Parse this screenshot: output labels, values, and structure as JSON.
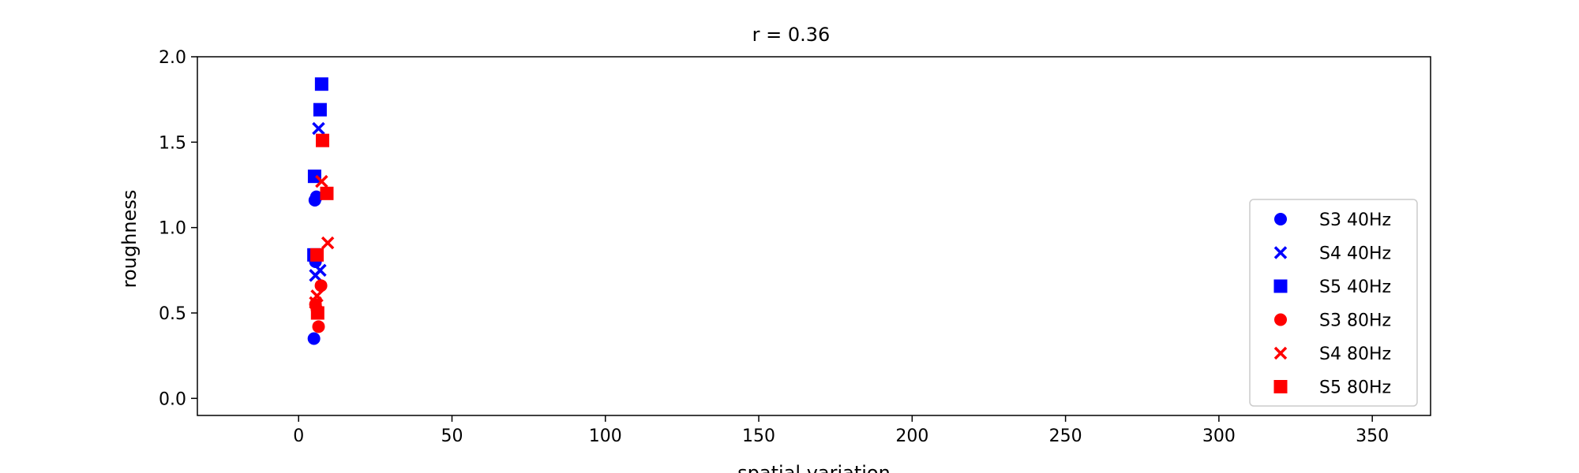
{
  "chart_data": {
    "type": "scatter",
    "title": "r = 0.36",
    "xlabel": "spatial variation",
    "ylabel": "roughness",
    "xlim": [
      -33,
      369
    ],
    "ylim": [
      -0.1,
      2.0
    ],
    "xticks": [
      0,
      50,
      100,
      150,
      200,
      250,
      300,
      350
    ],
    "yticks": [
      0.0,
      0.5,
      1.0,
      1.5,
      2.0
    ],
    "xtick_labels": [
      "0",
      "50",
      "100",
      "150",
      "200",
      "250",
      "300",
      "350"
    ],
    "ytick_labels": [
      "0.0",
      "0.5",
      "1.0",
      "1.5",
      "2.0"
    ],
    "grid": false,
    "legend_position": "center-right",
    "series": [
      {
        "name": "S3 40Hz",
        "marker": "circle",
        "color": "#0000ff",
        "x": [
          5.0,
          5.5,
          5.8,
          5.3
        ],
        "y": [
          0.35,
          0.8,
          1.18,
          1.16
        ]
      },
      {
        "name": "S4 40Hz",
        "marker": "x",
        "color": "#0000ff",
        "x": [
          6.5,
          7.0,
          5.5
        ],
        "y": [
          1.58,
          0.75,
          0.72
        ]
      },
      {
        "name": "S5 40Hz",
        "marker": "square",
        "color": "#0000ff",
        "x": [
          7.5,
          7.0,
          5.2,
          5.0
        ],
        "y": [
          1.84,
          1.69,
          1.3,
          0.84
        ]
      },
      {
        "name": "S3 80Hz",
        "marker": "circle",
        "color": "#ff0000",
        "x": [
          7.3,
          6.5,
          6.0,
          5.5
        ],
        "y": [
          0.66,
          0.42,
          0.52,
          0.55
        ]
      },
      {
        "name": "S4 80Hz",
        "marker": "x",
        "color": "#ff0000",
        "x": [
          7.5,
          9.5,
          6.0,
          5.5
        ],
        "y": [
          1.27,
          0.91,
          0.6,
          0.56
        ]
      },
      {
        "name": "S5 80Hz",
        "marker": "square",
        "color": "#ff0000",
        "x": [
          7.8,
          9.2,
          6.0,
          6.2
        ],
        "y": [
          1.51,
          1.2,
          0.84,
          0.5
        ]
      }
    ]
  }
}
